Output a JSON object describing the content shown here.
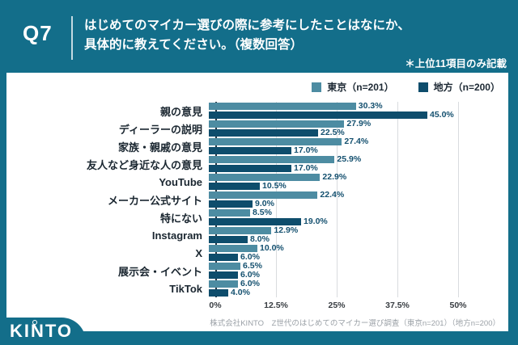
{
  "header": {
    "q_label": "Q7",
    "question_line1": "はじめてのマイカー選びの際に参考にしたことはなにか、",
    "question_line2": "具体的に教えてください。（複数回答）",
    "note": "＊上位11項目のみ記載"
  },
  "legend": [
    {
      "label": "東京（n=201）",
      "color": "#4d8ca2"
    },
    {
      "label": "地方（n=200）",
      "color": "#0e4d6c"
    }
  ],
  "chart_data": {
    "type": "bar",
    "orientation": "horizontal",
    "title": "はじめてのマイカー選びの際に参考にしたこと（複数回答・上位11項目）",
    "categories": [
      "親の意見",
      "ディーラーの説明",
      "家族・親戚の意見",
      "友人など身近な人の意見",
      "YouTube",
      "メーカー公式サイト",
      "特にない",
      "Instagram",
      "X",
      "展示会・イベント",
      "TikTok"
    ],
    "series": [
      {
        "name": "東京（n=201）",
        "color": "#4d8ca2",
        "values": [
          30.3,
          27.9,
          27.4,
          25.9,
          22.9,
          22.4,
          8.5,
          12.9,
          10.0,
          6.5,
          6.0
        ]
      },
      {
        "name": "地方（n=200）",
        "color": "#0e4d6c",
        "values": [
          45.0,
          22.5,
          17.0,
          17.0,
          10.5,
          9.0,
          19.0,
          8.0,
          6.0,
          6.0,
          4.0
        ]
      }
    ],
    "xlim": [
      0,
      50
    ],
    "x_ticks": [
      "0%",
      "12.5%",
      "25%",
      "37.5%",
      "50%"
    ],
    "value_suffix": "%",
    "grid": "vertical",
    "legend_position": "top-right"
  },
  "footer": {
    "logo": "KINTO",
    "source": "株式会社KINTO　Z世代のはじめてのマイカー選び調査（東京n=201）（地方n=200）"
  }
}
